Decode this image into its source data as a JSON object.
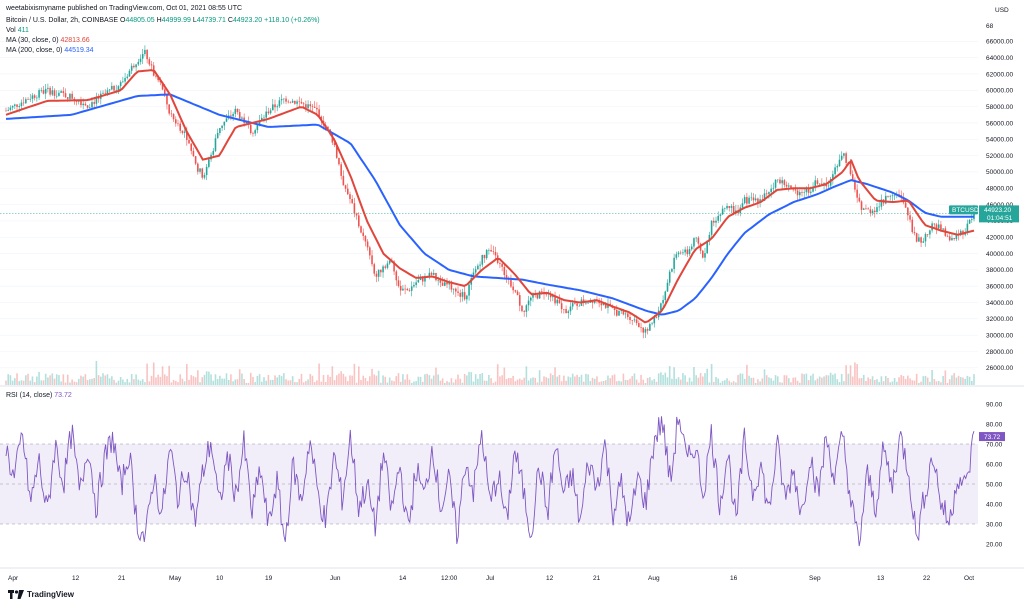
{
  "header": {
    "author_line": "weetabixismyname published on TradingView.com, Oct 01, 2021 08:55 UTC",
    "symbol": "Bitcoin / U.S. Dollar, 2h, COINBASE",
    "ohlc": {
      "open_label": "O",
      "open": "44805.05",
      "high_label": "H",
      "high": "44999.99",
      "low_label": "L",
      "low": "44739.71",
      "close_label": "C",
      "close": "44923.20",
      "change": "+118.10 (+0.26%)"
    },
    "vol": {
      "label": "Vol",
      "value": "411"
    },
    "ma30": {
      "label": "MA (30, close, 0)",
      "value": "42813.66"
    },
    "ma200": {
      "label": "MA (200, close, 0)",
      "value": "44519.34"
    },
    "rsi": {
      "label": "RSI (14, close)",
      "value": "73.72"
    }
  },
  "price_axis": {
    "currency": "USD",
    "ticks": [
      "66000.00",
      "64000.00",
      "62000.00",
      "60000.00",
      "58000.00",
      "56000.00",
      "54000.00",
      "52000.00",
      "50000.00",
      "48000.00",
      "46000.00",
      "44000.00",
      "42000.00",
      "40000.00",
      "38000.00",
      "36000.00",
      "34000.00",
      "32000.00",
      "30000.00",
      "28000.00",
      "26000.00"
    ],
    "top_tick": "68",
    "symbol_badge": "BTCUSD",
    "last_price": "44923.20",
    "countdown": "01:04:51"
  },
  "rsi_axis": {
    "ticks": [
      "90.00",
      "80.00",
      "70.00",
      "60.00",
      "50.00",
      "40.00",
      "30.00",
      "20.00"
    ]
  },
  "time_axis": {
    "labels": [
      "Apr",
      "12",
      "21",
      "May",
      "10",
      "19",
      "Jun",
      "14",
      "12:00",
      "Jul",
      "12",
      "21",
      "Aug",
      "16",
      "Sep",
      "13",
      "22",
      "Oct"
    ]
  },
  "footer": {
    "brand": "TradingView"
  },
  "colors": {
    "ma30": "#e0463b",
    "ma200": "#2962ff",
    "rsi": "#7e57c2",
    "rsi_band": "#ede7f6",
    "up": "#26a69a",
    "down": "#ef5350"
  },
  "chart_data": {
    "type": "candlestick",
    "timeframe": "2h",
    "price_range": [
      25000,
      68000
    ],
    "rsi_range": [
      10,
      95
    ],
    "rsi_bands": [
      30,
      50,
      70
    ],
    "last_close": 44923.2,
    "price_path": [
      [
        0,
        57500
      ],
      [
        3,
        59200
      ],
      [
        5,
        60000
      ],
      [
        8,
        59200
      ],
      [
        10,
        58200
      ],
      [
        12,
        59500
      ],
      [
        14,
        60800
      ],
      [
        16,
        63800
      ],
      [
        17,
        64600
      ],
      [
        18,
        62000
      ],
      [
        19,
        60500
      ],
      [
        20,
        57000
      ],
      [
        21,
        55800
      ],
      [
        22,
        54500
      ],
      [
        23,
        51000
      ],
      [
        24,
        49500
      ],
      [
        25,
        52000
      ],
      [
        26,
        55500
      ],
      [
        28,
        57500
      ],
      [
        30,
        55000
      ],
      [
        32,
        57500
      ],
      [
        34,
        59000
      ],
      [
        36,
        58400
      ],
      [
        38,
        57500
      ],
      [
        40,
        53500
      ],
      [
        41,
        49000
      ],
      [
        42,
        46500
      ],
      [
        43,
        43500
      ],
      [
        44,
        40800
      ],
      [
        45,
        37000
      ],
      [
        46,
        38500
      ],
      [
        47,
        39000
      ],
      [
        48,
        35500
      ],
      [
        49,
        35500
      ],
      [
        50,
        36500
      ],
      [
        52,
        37500
      ],
      [
        53,
        36000
      ],
      [
        54,
        36200
      ],
      [
        55,
        35000
      ],
      [
        56,
        34800
      ],
      [
        57,
        37500
      ],
      [
        58,
        39500
      ],
      [
        59,
        40400
      ],
      [
        60,
        39000
      ],
      [
        62,
        35500
      ],
      [
        63,
        33000
      ],
      [
        64,
        34500
      ],
      [
        65,
        35000
      ],
      [
        66,
        35500
      ],
      [
        68,
        33000
      ],
      [
        70,
        34000
      ],
      [
        72,
        34500
      ],
      [
        74,
        33000
      ],
      [
        76,
        32300
      ],
      [
        77,
        31500
      ],
      [
        78,
        30300
      ],
      [
        79,
        31800
      ],
      [
        80,
        34000
      ],
      [
        81,
        38000
      ],
      [
        82,
        40500
      ],
      [
        83,
        40000
      ],
      [
        84,
        41800
      ],
      [
        85,
        39500
      ],
      [
        86,
        43800
      ],
      [
        87,
        44800
      ],
      [
        88,
        46000
      ],
      [
        89,
        45000
      ],
      [
        90,
        46500
      ],
      [
        92,
        46500
      ],
      [
        94,
        49000
      ],
      [
        95,
        48500
      ],
      [
        96,
        47500
      ],
      [
        98,
        47800
      ],
      [
        99,
        49000
      ],
      [
        100,
        48000
      ],
      [
        101,
        50500
      ],
      [
        102,
        52500
      ],
      [
        103,
        50000
      ],
      [
        104,
        46000
      ],
      [
        105,
        45200
      ],
      [
        106,
        45500
      ],
      [
        107,
        46500
      ],
      [
        108,
        47500
      ],
      [
        109,
        47000
      ],
      [
        110,
        44500
      ],
      [
        111,
        41500
      ],
      [
        112,
        41800
      ],
      [
        113,
        43500
      ],
      [
        114,
        43000
      ],
      [
        115,
        41500
      ],
      [
        116,
        42300
      ],
      [
        117,
        43000
      ],
      [
        118,
        44923
      ]
    ],
    "ma30_path": [
      [
        0,
        57000
      ],
      [
        5,
        58700
      ],
      [
        10,
        58800
      ],
      [
        14,
        60000
      ],
      [
        16,
        62300
      ],
      [
        18,
        62500
      ],
      [
        20,
        59500
      ],
      [
        22,
        55000
      ],
      [
        24,
        51500
      ],
      [
        26,
        52000
      ],
      [
        28,
        55500
      ],
      [
        32,
        56500
      ],
      [
        36,
        58000
      ],
      [
        38,
        57000
      ],
      [
        40,
        54000
      ],
      [
        42,
        49500
      ],
      [
        44,
        44000
      ],
      [
        46,
        40000
      ],
      [
        48,
        38200
      ],
      [
        50,
        37000
      ],
      [
        52,
        37200
      ],
      [
        54,
        36500
      ],
      [
        56,
        36000
      ],
      [
        58,
        38000
      ],
      [
        60,
        39500
      ],
      [
        62,
        37500
      ],
      [
        64,
        35000
      ],
      [
        66,
        35200
      ],
      [
        68,
        34300
      ],
      [
        70,
        34000
      ],
      [
        72,
        34300
      ],
      [
        74,
        33500
      ],
      [
        76,
        32800
      ],
      [
        78,
        31500
      ],
      [
        80,
        33000
      ],
      [
        82,
        37000
      ],
      [
        84,
        40500
      ],
      [
        86,
        41800
      ],
      [
        88,
        44500
      ],
      [
        90,
        45600
      ],
      [
        92,
        46300
      ],
      [
        94,
        47800
      ],
      [
        96,
        48000
      ],
      [
        98,
        48000
      ],
      [
        100,
        48500
      ],
      [
        102,
        50000
      ],
      [
        103,
        51500
      ],
      [
        104,
        49000
      ],
      [
        106,
        46500
      ],
      [
        108,
        46300
      ],
      [
        110,
        46500
      ],
      [
        112,
        43500
      ],
      [
        114,
        42800
      ],
      [
        116,
        42300
      ],
      [
        118,
        42813
      ]
    ],
    "ma200_path": [
      [
        0,
        56500
      ],
      [
        8,
        57000
      ],
      [
        16,
        59300
      ],
      [
        20,
        59500
      ],
      [
        26,
        57000
      ],
      [
        32,
        55500
      ],
      [
        38,
        55800
      ],
      [
        42,
        53500
      ],
      [
        45,
        49000
      ],
      [
        48,
        43500
      ],
      [
        51,
        40000
      ],
      [
        54,
        38000
      ],
      [
        57,
        37200
      ],
      [
        60,
        37000
      ],
      [
        63,
        36800
      ],
      [
        66,
        36200
      ],
      [
        70,
        35500
      ],
      [
        74,
        34500
      ],
      [
        78,
        33000
      ],
      [
        80,
        32500
      ],
      [
        82,
        33000
      ],
      [
        84,
        34500
      ],
      [
        86,
        37000
      ],
      [
        88,
        40000
      ],
      [
        90,
        42500
      ],
      [
        93,
        44800
      ],
      [
        96,
        46300
      ],
      [
        99,
        47300
      ],
      [
        101,
        48200
      ],
      [
        103,
        49000
      ],
      [
        105,
        48500
      ],
      [
        108,
        47500
      ],
      [
        110,
        46500
      ],
      [
        112,
        45000
      ],
      [
        114,
        44500
      ],
      [
        116,
        44500
      ],
      [
        118,
        44519
      ]
    ],
    "rsi_path": [
      [
        0,
        68
      ],
      [
        1,
        52
      ],
      [
        2,
        75
      ],
      [
        3,
        40
      ],
      [
        4,
        62
      ],
      [
        5,
        35
      ],
      [
        6,
        70
      ],
      [
        7,
        50
      ],
      [
        8,
        76
      ],
      [
        9,
        45
      ],
      [
        10,
        70
      ],
      [
        11,
        38
      ],
      [
        12,
        62
      ],
      [
        13,
        74
      ],
      [
        14,
        48
      ],
      [
        15,
        66
      ],
      [
        16,
        30
      ],
      [
        17,
        22
      ],
      [
        18,
        55
      ],
      [
        19,
        34
      ],
      [
        20,
        68
      ],
      [
        21,
        42
      ],
      [
        22,
        60
      ],
      [
        23,
        30
      ],
      [
        24,
        56
      ],
      [
        25,
        72
      ],
      [
        26,
        38
      ],
      [
        27,
        65
      ],
      [
        28,
        44
      ],
      [
        29,
        70
      ],
      [
        30,
        35
      ],
      [
        31,
        58
      ],
      [
        32,
        28
      ],
      [
        33,
        52
      ],
      [
        34,
        20
      ],
      [
        35,
        60
      ],
      [
        36,
        40
      ],
      [
        37,
        73
      ],
      [
        38,
        46
      ],
      [
        39,
        30
      ],
      [
        40,
        65
      ],
      [
        41,
        42
      ],
      [
        42,
        74
      ],
      [
        43,
        38
      ],
      [
        44,
        50
      ],
      [
        45,
        28
      ],
      [
        46,
        66
      ],
      [
        47,
        36
      ],
      [
        48,
        60
      ],
      [
        49,
        26
      ],
      [
        50,
        58
      ],
      [
        51,
        43
      ],
      [
        52,
        70
      ],
      [
        53,
        38
      ],
      [
        54,
        52
      ],
      [
        55,
        24
      ],
      [
        56,
        62
      ],
      [
        57,
        46
      ],
      [
        58,
        76
      ],
      [
        59,
        40
      ],
      [
        60,
        55
      ],
      [
        61,
        30
      ],
      [
        62,
        67
      ],
      [
        63,
        48
      ],
      [
        64,
        25
      ],
      [
        65,
        60
      ],
      [
        66,
        35
      ],
      [
        67,
        70
      ],
      [
        68,
        44
      ],
      [
        69,
        55
      ],
      [
        70,
        30
      ],
      [
        71,
        62
      ],
      [
        72,
        48
      ],
      [
        73,
        70
      ],
      [
        74,
        36
      ],
      [
        75,
        50
      ],
      [
        76,
        28
      ],
      [
        77,
        54
      ],
      [
        78,
        40
      ],
      [
        79,
        72
      ],
      [
        80,
        82
      ],
      [
        81,
        50
      ],
      [
        82,
        86
      ],
      [
        83,
        60
      ],
      [
        84,
        70
      ],
      [
        85,
        45
      ],
      [
        86,
        76
      ],
      [
        87,
        40
      ],
      [
        88,
        66
      ],
      [
        89,
        30
      ],
      [
        90,
        72
      ],
      [
        91,
        46
      ],
      [
        92,
        60
      ],
      [
        93,
        35
      ],
      [
        94,
        70
      ],
      [
        95,
        42
      ],
      [
        96,
        58
      ],
      [
        97,
        34
      ],
      [
        98,
        66
      ],
      [
        99,
        44
      ],
      [
        100,
        74
      ],
      [
        101,
        52
      ],
      [
        102,
        75
      ],
      [
        103,
        40
      ],
      [
        104,
        20
      ],
      [
        105,
        55
      ],
      [
        106,
        38
      ],
      [
        107,
        68
      ],
      [
        108,
        48
      ],
      [
        109,
        74
      ],
      [
        110,
        58
      ],
      [
        111,
        22
      ],
      [
        112,
        45
      ],
      [
        113,
        65
      ],
      [
        114,
        40
      ],
      [
        115,
        30
      ],
      [
        116,
        55
      ],
      [
        117,
        48
      ],
      [
        118,
        73.72
      ]
    ]
  }
}
